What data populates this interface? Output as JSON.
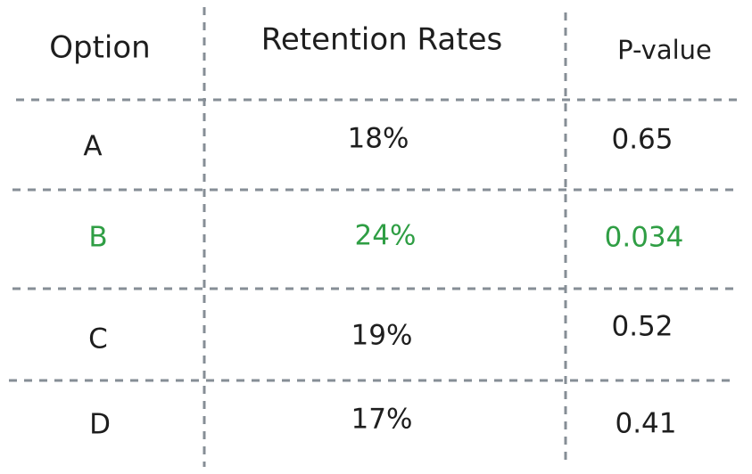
{
  "table": {
    "header": [
      "Option",
      "Retention Rates",
      "P-value"
    ],
    "rows": [
      [
        "A",
        "18%",
        "0.65"
      ],
      [
        "B",
        "24%",
        "0.034"
      ],
      [
        "C",
        "19%",
        "0.52"
      ],
      [
        "D",
        "17%",
        "0.41"
      ]
    ]
  }
}
